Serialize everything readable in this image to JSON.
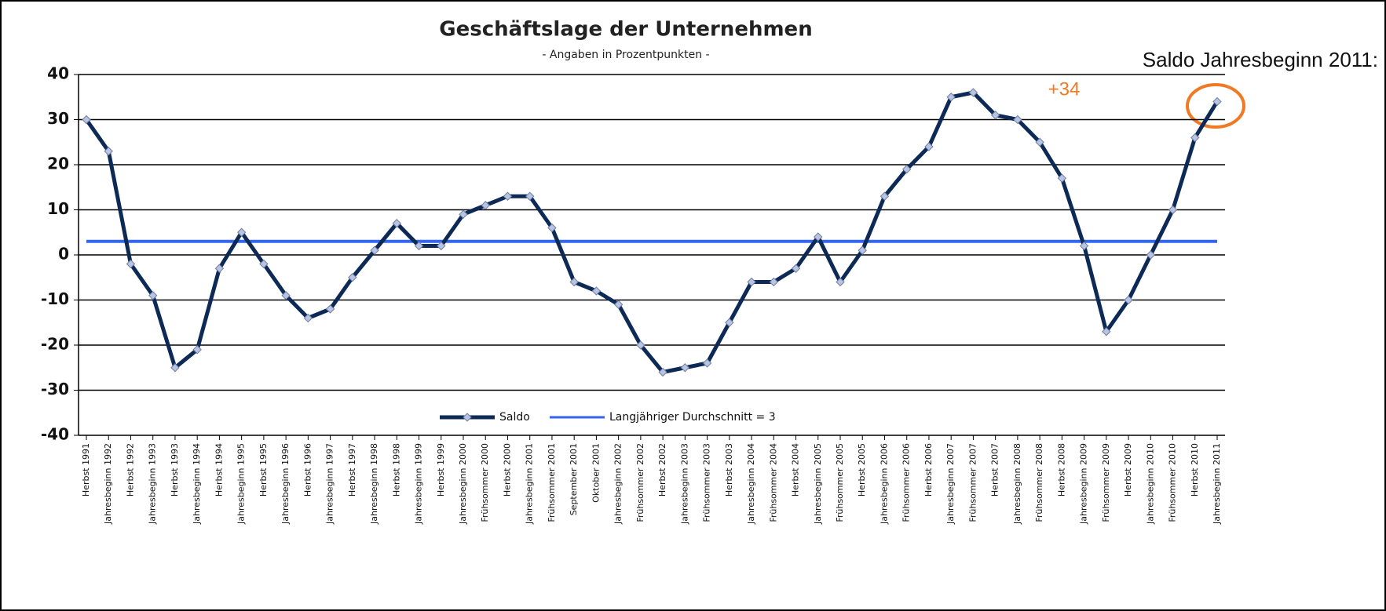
{
  "chart_data": {
    "type": "line",
    "title": "Geschäftslage der Unternehmen",
    "subtitle": "- Angaben in Prozentpunkten -",
    "annotations": [
      "Saldo Jahresbeginn 2011:",
      "+34"
    ],
    "categories": [
      "Herbst 1991",
      "Jahresbeginn 1992",
      "Herbst 1992",
      "Jahresbeginn 1993",
      "Herbst 1993",
      "Jahresbeginn 1994",
      "Herbst 1994",
      "Jahresbeginn 1995",
      "Herbst 1995",
      "Jahresbeginn 1996",
      "Herbst 1996",
      "Jahresbeginn 1997",
      "Herbst 1997",
      "Jahresbeginn 1998",
      "Herbst 1998",
      "Jahresbeginn 1999",
      "Herbst 1999",
      "Jahresbeginn 2000",
      "Frühsommer 2000",
      "Herbst 2000",
      "Jahresbeginn 2001",
      "Frühsommer 2001",
      "September 2001",
      "Oktober 2001",
      "Jahresbeginn 2002",
      "Frühsommer 2002",
      "Herbst 2002",
      "Jahresbeginn 2003",
      "Frühsommer 2003",
      "Herbst 2003",
      "Jahresbeginn 2004",
      "Frühsommer 2004",
      "Herbst 2004",
      "Jahresbeginn 2005",
      "Frühsommer 2005",
      "Herbst 2005",
      "Jahresbeginn 2006",
      "Frühsommer 2006",
      "Herbst 2006",
      "Jahresbeginn 2007",
      "Frühsommer 2007",
      "Herbst 2007",
      "Jahresbeginn 2008",
      "Frühsommer 2008",
      "Herbst 2008",
      "Jahresbeginn 2009",
      "Frühsommer 2009",
      "Herbst 2009",
      "Jahresbeginn 2010",
      "Frühsommer 2010",
      "Herbst 2010",
      "Jahresbeginn 2011"
    ],
    "series": [
      {
        "name": "Saldo",
        "color": "#0d2a57",
        "values": [
          30,
          23,
          -2,
          -9,
          -25,
          -21,
          -3,
          5,
          -2,
          -9,
          -14,
          -12,
          -5,
          1,
          7,
          2,
          2,
          9,
          11,
          13,
          13,
          6,
          -6,
          -8,
          -11,
          -20,
          -26,
          -25,
          -24,
          -15,
          -6,
          -6,
          -3,
          4,
          -6,
          1,
          13,
          19,
          24,
          35,
          36,
          31,
          30,
          25,
          17,
          2,
          -17,
          -10,
          0,
          10,
          26,
          34
        ]
      }
    ],
    "reference_line": {
      "name": "Langjähriger Durchschnitt = 3",
      "value": 3,
      "color": "#3366ee"
    },
    "ylim": [
      -40,
      40
    ],
    "yticks": [
      -40,
      -30,
      -20,
      -10,
      0,
      10,
      20,
      30,
      40
    ],
    "grid": true
  }
}
